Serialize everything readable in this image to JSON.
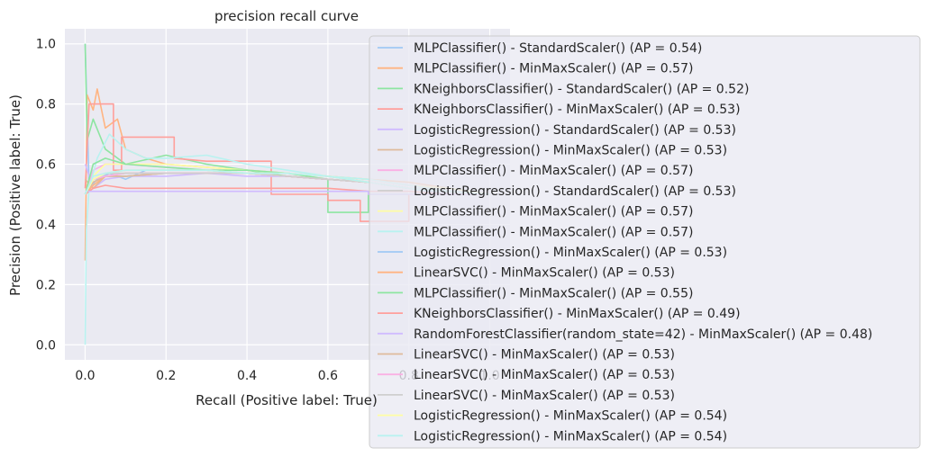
{
  "chart_data": {
    "type": "line",
    "title": "precision recall curve",
    "xlabel": "Recall (Positive label: True)",
    "ylabel": "Precision (Positive label: True)",
    "xlim": [
      -0.05,
      1.05
    ],
    "ylim": [
      -0.05,
      1.05
    ],
    "xticks": [
      0.0,
      0.2,
      0.4,
      0.6,
      0.8,
      1.0
    ],
    "yticks": [
      0.0,
      0.2,
      0.4,
      0.6,
      0.8,
      1.0
    ],
    "grid": true,
    "legend_position": "right",
    "series": [
      {
        "name": "MLPClassifier() - StandardScaler() (AP = 0.54)",
        "color": "#a1c9f4",
        "points": [
          [
            0,
            1.0
          ],
          [
            0.01,
            0.52
          ],
          [
            0.03,
            0.55
          ],
          [
            0.06,
            0.57
          ],
          [
            0.1,
            0.55
          ],
          [
            0.15,
            0.58
          ],
          [
            0.2,
            0.58
          ],
          [
            0.3,
            0.58
          ],
          [
            0.4,
            0.57
          ],
          [
            0.5,
            0.57
          ],
          [
            0.6,
            0.56
          ],
          [
            0.7,
            0.54
          ],
          [
            0.8,
            0.52
          ],
          [
            0.9,
            0.5
          ],
          [
            1.0,
            0.5
          ]
        ]
      },
      {
        "name": "MLPClassifier() - MinMaxScaler() (AP = 0.57)",
        "color": "#ffb482",
        "points": [
          [
            0,
            0.28
          ],
          [
            0.005,
            0.83
          ],
          [
            0.02,
            0.78
          ],
          [
            0.03,
            0.85
          ],
          [
            0.05,
            0.72
          ],
          [
            0.08,
            0.75
          ],
          [
            0.1,
            0.65
          ],
          [
            0.15,
            0.62
          ],
          [
            0.2,
            0.6
          ],
          [
            0.3,
            0.59
          ],
          [
            0.4,
            0.58
          ],
          [
            0.5,
            0.57
          ],
          [
            0.6,
            0.56
          ],
          [
            0.7,
            0.55
          ],
          [
            0.8,
            0.54
          ],
          [
            0.9,
            0.52
          ],
          [
            1.0,
            0.5
          ]
        ]
      },
      {
        "name": "KNeighborsClassifier() - StandardScaler() (AP = 0.52)",
        "color": "#8de5a1",
        "points": [
          [
            0,
            1.0
          ],
          [
            0.005,
            0.68
          ],
          [
            0.02,
            0.75
          ],
          [
            0.05,
            0.65
          ],
          [
            0.1,
            0.6
          ],
          [
            0.2,
            0.63
          ],
          [
            0.3,
            0.6
          ],
          [
            0.4,
            0.58
          ],
          [
            0.5,
            0.56
          ],
          [
            0.6,
            0.55
          ],
          [
            0.6,
            0.44
          ],
          [
            0.7,
            0.44
          ],
          [
            0.7,
            0.5
          ],
          [
            0.8,
            0.5
          ],
          [
            1.0,
            0.5
          ]
        ]
      },
      {
        "name": "KNeighborsClassifier() - MinMaxScaler() (AP = 0.53)",
        "color": "#ff9f9b",
        "points": [
          [
            0,
            0.52
          ],
          [
            0.01,
            0.8
          ],
          [
            0.07,
            0.8
          ],
          [
            0.07,
            0.58
          ],
          [
            0.09,
            0.58
          ],
          [
            0.09,
            0.69
          ],
          [
            0.22,
            0.69
          ],
          [
            0.22,
            0.62
          ],
          [
            0.3,
            0.61
          ],
          [
            0.3,
            0.61
          ],
          [
            0.46,
            0.61
          ],
          [
            0.46,
            0.5
          ],
          [
            0.6,
            0.5
          ],
          [
            0.6,
            0.48
          ],
          [
            0.68,
            0.48
          ],
          [
            0.68,
            0.41
          ],
          [
            0.8,
            0.41
          ],
          [
            0.8,
            0.5
          ],
          [
            1.0,
            0.5
          ]
        ]
      },
      {
        "name": "LogisticRegression() - StandardScaler() (AP = 0.53)",
        "color": "#d0bbff",
        "points": [
          [
            0,
            0.6
          ],
          [
            0.02,
            0.52
          ],
          [
            0.05,
            0.55
          ],
          [
            0.1,
            0.56
          ],
          [
            0.2,
            0.56
          ],
          [
            0.3,
            0.57
          ],
          [
            0.4,
            0.56
          ],
          [
            0.5,
            0.56
          ],
          [
            0.6,
            0.55
          ],
          [
            0.7,
            0.54
          ],
          [
            0.8,
            0.52
          ],
          [
            0.9,
            0.51
          ],
          [
            1.0,
            0.5
          ]
        ]
      },
      {
        "name": "LogisticRegression() - MinMaxScaler() (AP = 0.53)",
        "color": "#debb9b",
        "points": [
          [
            0,
            0.55
          ],
          [
            0.02,
            0.52
          ],
          [
            0.05,
            0.56
          ],
          [
            0.1,
            0.56
          ],
          [
            0.2,
            0.57
          ],
          [
            0.3,
            0.57
          ],
          [
            0.4,
            0.57
          ],
          [
            0.5,
            0.56
          ],
          [
            0.6,
            0.55
          ],
          [
            0.7,
            0.54
          ],
          [
            0.8,
            0.52
          ],
          [
            0.9,
            0.51
          ],
          [
            1.0,
            0.5
          ]
        ]
      },
      {
        "name": "MLPClassifier() - MinMaxScaler() (AP = 0.57)",
        "color": "#fab0e4",
        "points": [
          [
            0,
            0.5
          ],
          [
            0.02,
            0.58
          ],
          [
            0.05,
            0.6
          ],
          [
            0.1,
            0.6
          ],
          [
            0.2,
            0.59
          ],
          [
            0.3,
            0.58
          ],
          [
            0.4,
            0.58
          ],
          [
            0.5,
            0.57
          ],
          [
            0.6,
            0.56
          ],
          [
            0.7,
            0.55
          ],
          [
            0.8,
            0.53
          ],
          [
            0.9,
            0.52
          ],
          [
            1.0,
            0.5
          ]
        ]
      },
      {
        "name": "LogisticRegression() - StandardScaler() (AP = 0.53)",
        "color": "#cfcfcf",
        "points": [
          [
            0,
            0.5
          ],
          [
            0.02,
            0.55
          ],
          [
            0.05,
            0.57
          ],
          [
            0.1,
            0.58
          ],
          [
            0.2,
            0.58
          ],
          [
            0.3,
            0.58
          ],
          [
            0.4,
            0.57
          ],
          [
            0.5,
            0.57
          ],
          [
            0.6,
            0.56
          ],
          [
            0.7,
            0.54
          ],
          [
            0.8,
            0.52
          ],
          [
            0.9,
            0.51
          ],
          [
            1.0,
            0.5
          ]
        ]
      },
      {
        "name": "MLPClassifier() - MinMaxScaler() (AP = 0.57)",
        "color": "#fffea3",
        "points": [
          [
            0,
            0.5
          ],
          [
            0.02,
            0.56
          ],
          [
            0.05,
            0.6
          ],
          [
            0.1,
            0.6
          ],
          [
            0.2,
            0.6
          ],
          [
            0.3,
            0.59
          ],
          [
            0.4,
            0.58
          ],
          [
            0.5,
            0.57
          ],
          [
            0.6,
            0.56
          ],
          [
            0.7,
            0.55
          ],
          [
            0.8,
            0.53
          ],
          [
            0.9,
            0.52
          ],
          [
            1.0,
            0.5
          ]
        ]
      },
      {
        "name": "MLPClassifier() - MinMaxScaler() (AP = 0.57)",
        "color": "#b9f2f0",
        "points": [
          [
            0,
            0.0
          ],
          [
            0.003,
            0.38
          ],
          [
            0.01,
            0.52
          ],
          [
            0.03,
            0.62
          ],
          [
            0.06,
            0.7
          ],
          [
            0.1,
            0.65
          ],
          [
            0.15,
            0.62
          ],
          [
            0.2,
            0.62
          ],
          [
            0.3,
            0.63
          ],
          [
            0.4,
            0.6
          ],
          [
            0.5,
            0.58
          ],
          [
            0.6,
            0.56
          ],
          [
            0.7,
            0.55
          ],
          [
            0.8,
            0.53
          ],
          [
            0.9,
            0.51
          ],
          [
            1.0,
            0.5
          ]
        ]
      },
      {
        "name": "LogisticRegression() - MinMaxScaler() (AP = 0.53)",
        "color": "#a1c9f4",
        "points": [
          [
            0,
            0.5
          ],
          [
            0.02,
            0.54
          ],
          [
            0.05,
            0.56
          ],
          [
            0.1,
            0.56
          ],
          [
            0.2,
            0.57
          ],
          [
            0.3,
            0.57
          ],
          [
            0.4,
            0.57
          ],
          [
            0.5,
            0.56
          ],
          [
            0.6,
            0.55
          ],
          [
            0.7,
            0.54
          ],
          [
            0.8,
            0.52
          ],
          [
            0.9,
            0.51
          ],
          [
            1.0,
            0.5
          ]
        ]
      },
      {
        "name": "LinearSVC() - MinMaxScaler() (AP = 0.53)",
        "color": "#ffb482",
        "points": [
          [
            0,
            0.5
          ],
          [
            0.02,
            0.53
          ],
          [
            0.05,
            0.56
          ],
          [
            0.1,
            0.57
          ],
          [
            0.2,
            0.57
          ],
          [
            0.3,
            0.57
          ],
          [
            0.4,
            0.57
          ],
          [
            0.5,
            0.56
          ],
          [
            0.6,
            0.55
          ],
          [
            0.7,
            0.54
          ],
          [
            0.8,
            0.52
          ],
          [
            0.9,
            0.51
          ],
          [
            1.0,
            0.5
          ]
        ]
      },
      {
        "name": "MLPClassifier() - MinMaxScaler() (AP = 0.55)",
        "color": "#8de5a1",
        "points": [
          [
            0,
            0.5
          ],
          [
            0.02,
            0.6
          ],
          [
            0.05,
            0.62
          ],
          [
            0.1,
            0.6
          ],
          [
            0.2,
            0.59
          ],
          [
            0.3,
            0.58
          ],
          [
            0.4,
            0.58
          ],
          [
            0.5,
            0.57
          ],
          [
            0.6,
            0.55
          ],
          [
            0.7,
            0.54
          ],
          [
            0.8,
            0.52
          ],
          [
            0.9,
            0.51
          ],
          [
            1.0,
            0.5
          ]
        ]
      },
      {
        "name": "KNeighborsClassifier() - MinMaxScaler() (AP = 0.49)",
        "color": "#ff9f9b",
        "points": [
          [
            0,
            0.5
          ],
          [
            0.02,
            0.52
          ],
          [
            0.05,
            0.53
          ],
          [
            0.1,
            0.52
          ],
          [
            0.2,
            0.52
          ],
          [
            0.3,
            0.52
          ],
          [
            0.4,
            0.52
          ],
          [
            0.5,
            0.52
          ],
          [
            0.6,
            0.52
          ],
          [
            0.7,
            0.51
          ],
          [
            0.8,
            0.51
          ],
          [
            0.9,
            0.5
          ],
          [
            1.0,
            0.5
          ]
        ]
      },
      {
        "name": "RandomForestClassifier(random_state=42) - MinMaxScaler() (AP = 0.48)",
        "color": "#d0bbff",
        "points": [
          [
            0,
            0.51
          ],
          [
            0.02,
            0.51
          ],
          [
            0.1,
            0.51
          ],
          [
            0.2,
            0.51
          ],
          [
            0.3,
            0.51
          ],
          [
            0.5,
            0.51
          ],
          [
            0.7,
            0.51
          ],
          [
            0.7,
            0.5
          ],
          [
            1.0,
            0.5
          ]
        ]
      },
      {
        "name": "LinearSVC() - MinMaxScaler() (AP = 0.53)",
        "color": "#debb9b",
        "points": [
          [
            0,
            0.5
          ],
          [
            0.02,
            0.54
          ],
          [
            0.05,
            0.56
          ],
          [
            0.1,
            0.56
          ],
          [
            0.2,
            0.57
          ],
          [
            0.3,
            0.57
          ],
          [
            0.4,
            0.57
          ],
          [
            0.5,
            0.56
          ],
          [
            0.6,
            0.55
          ],
          [
            0.7,
            0.54
          ],
          [
            0.8,
            0.52
          ],
          [
            0.9,
            0.51
          ],
          [
            1.0,
            0.5
          ]
        ]
      },
      {
        "name": "LinearSVC() - MinMaxScaler() (AP = 0.53)",
        "color": "#fab0e4",
        "points": [
          [
            0,
            0.5
          ],
          [
            0.02,
            0.55
          ],
          [
            0.05,
            0.56
          ],
          [
            0.1,
            0.57
          ],
          [
            0.2,
            0.57
          ],
          [
            0.3,
            0.57
          ],
          [
            0.4,
            0.57
          ],
          [
            0.5,
            0.56
          ],
          [
            0.6,
            0.55
          ],
          [
            0.7,
            0.54
          ],
          [
            0.8,
            0.52
          ],
          [
            0.9,
            0.51
          ],
          [
            1.0,
            0.5
          ]
        ]
      },
      {
        "name": "LinearSVC() - MinMaxScaler() (AP = 0.53)",
        "color": "#cfcfcf",
        "points": [
          [
            0,
            0.5
          ],
          [
            0.02,
            0.55
          ],
          [
            0.05,
            0.57
          ],
          [
            0.1,
            0.57
          ],
          [
            0.2,
            0.57
          ],
          [
            0.3,
            0.57
          ],
          [
            0.4,
            0.57
          ],
          [
            0.5,
            0.56
          ],
          [
            0.6,
            0.55
          ],
          [
            0.7,
            0.54
          ],
          [
            0.8,
            0.52
          ],
          [
            0.9,
            0.51
          ],
          [
            1.0,
            0.5
          ]
        ]
      },
      {
        "name": "LogisticRegression() - MinMaxScaler() (AP = 0.54)",
        "color": "#fffea3",
        "points": [
          [
            0,
            0.5
          ],
          [
            0.02,
            0.55
          ],
          [
            0.05,
            0.57
          ],
          [
            0.1,
            0.58
          ],
          [
            0.2,
            0.58
          ],
          [
            0.3,
            0.58
          ],
          [
            0.4,
            0.57
          ],
          [
            0.5,
            0.57
          ],
          [
            0.6,
            0.56
          ],
          [
            0.7,
            0.54
          ],
          [
            0.8,
            0.52
          ],
          [
            0.9,
            0.51
          ],
          [
            1.0,
            0.5
          ]
        ]
      },
      {
        "name": "LogisticRegression() - MinMaxScaler() (AP = 0.54)",
        "color": "#b9f2f0",
        "points": [
          [
            0,
            0.5
          ],
          [
            0.02,
            0.56
          ],
          [
            0.05,
            0.57
          ],
          [
            0.1,
            0.58
          ],
          [
            0.2,
            0.58
          ],
          [
            0.3,
            0.58
          ],
          [
            0.4,
            0.57
          ],
          [
            0.5,
            0.57
          ],
          [
            0.6,
            0.56
          ],
          [
            0.7,
            0.54
          ],
          [
            0.8,
            0.52
          ],
          [
            0.9,
            0.51
          ],
          [
            1.0,
            0.5
          ]
        ]
      }
    ]
  }
}
